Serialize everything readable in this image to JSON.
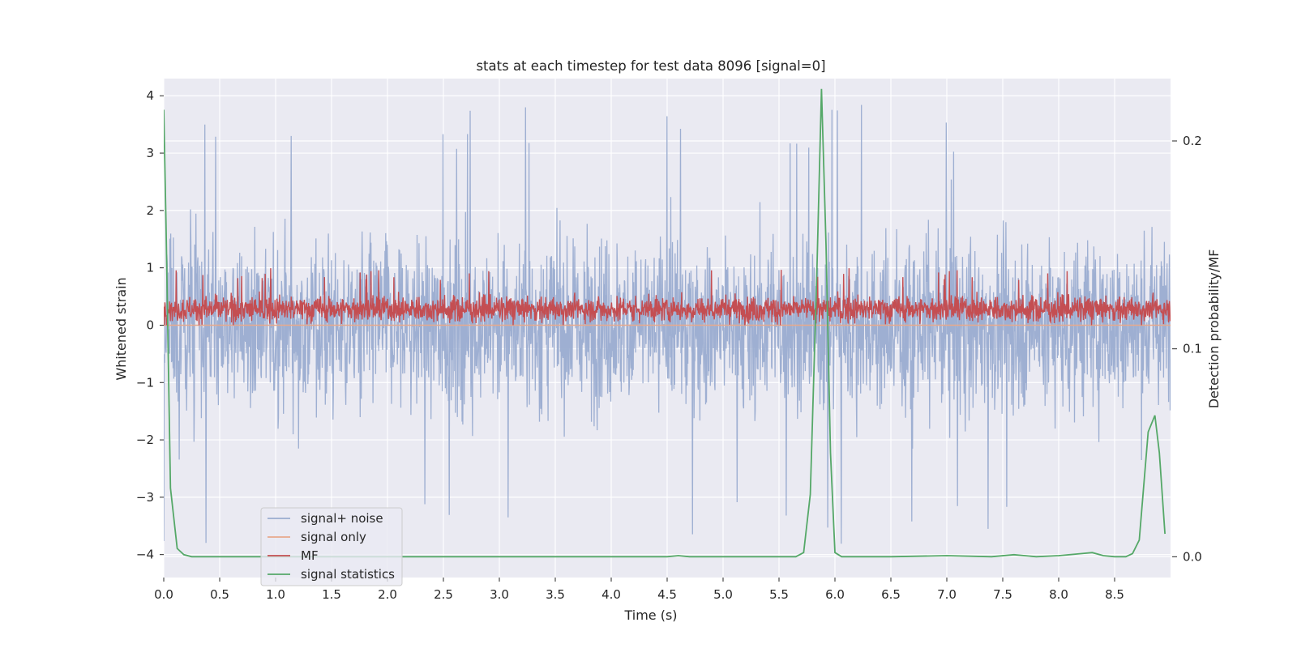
{
  "chart_data": {
    "type": "line",
    "title": "stats at each timestep for test data 8096 [signal=0]",
    "xlabel": "Time (s)",
    "ylabel": "Whitened strain",
    "y2label": "Detection probability/MF",
    "xlim": [
      0,
      9.0
    ],
    "ylim": [
      -4.4,
      4.3
    ],
    "y2lim": [
      -0.01,
      0.23
    ],
    "xticks": [
      0.0,
      0.5,
      1.0,
      1.5,
      2.0,
      2.5,
      3.0,
      3.5,
      4.0,
      4.5,
      5.0,
      5.5,
      6.0,
      6.5,
      7.0,
      7.5,
      8.0,
      8.5
    ],
    "xtick_labels": [
      "0.0",
      "0.5",
      "1.0",
      "1.5",
      "2.0",
      "2.5",
      "3.0",
      "3.5",
      "4.0",
      "4.5",
      "5.0",
      "5.5",
      "6.0",
      "6.5",
      "7.0",
      "7.5",
      "8.0",
      "8.5"
    ],
    "yticks": [
      -4,
      -3,
      -2,
      -1,
      0,
      1,
      2,
      3,
      4
    ],
    "ytick_labels": [
      "−4",
      "−3",
      "−2",
      "−1",
      "0",
      "1",
      "2",
      "3",
      "4"
    ],
    "y2ticks": [
      0.0,
      0.1,
      0.2
    ],
    "y2tick_labels": [
      "0.0",
      "0.1",
      "0.2"
    ],
    "legend_position": "lower-left",
    "series": [
      {
        "name": "signal+ noise",
        "axis": "left",
        "color": "#9aacd0",
        "description": "whitened noisy strain, roughly within -2 to 2 with spikes to about ±4",
        "envelope": {
          "typical_low": -2.0,
          "typical_high": 2.0,
          "peak_low": -4.0,
          "peak_high": 3.9
        }
      },
      {
        "name": "signal only",
        "axis": "left",
        "color": "#e8a98c",
        "x": [
          0.0,
          9.0
        ],
        "y": [
          0.0,
          0.0
        ]
      },
      {
        "name": "MF",
        "axis": "left",
        "color": "#c44e52",
        "description": "matched-filter output, roughly 0 to 0.7 with peaks near 1.0",
        "envelope": {
          "typical_low": 0.0,
          "typical_high": 0.6,
          "peak_high": 1.0
        }
      },
      {
        "name": "signal statistics",
        "axis": "right",
        "color": "#55a868",
        "x": [
          0.0,
          0.02,
          0.06,
          0.12,
          0.18,
          0.25,
          0.35,
          0.5,
          1.0,
          2.0,
          3.0,
          4.0,
          4.5,
          4.6,
          4.7,
          5.0,
          5.5,
          5.65,
          5.72,
          5.78,
          5.84,
          5.88,
          5.92,
          5.96,
          6.0,
          6.06,
          6.5,
          7.0,
          7.4,
          7.6,
          7.8,
          8.0,
          8.2,
          8.3,
          8.4,
          8.5,
          8.6,
          8.66,
          8.72,
          8.8,
          8.86,
          8.9,
          8.95
        ],
        "y": [
          0.215,
          0.16,
          0.033,
          0.004,
          0.001,
          0.0,
          0.0,
          0.0,
          0.0,
          0.0,
          0.0,
          0.0,
          0.0,
          0.0005,
          0.0,
          0.0,
          0.0,
          0.0,
          0.002,
          0.03,
          0.14,
          0.225,
          0.15,
          0.05,
          0.002,
          0.0,
          0.0,
          0.0005,
          0.0,
          0.001,
          0.0,
          0.0005,
          0.0015,
          0.002,
          0.0005,
          0.0,
          0.0,
          0.0015,
          0.008,
          0.06,
          0.068,
          0.05,
          0.011
        ]
      }
    ]
  }
}
